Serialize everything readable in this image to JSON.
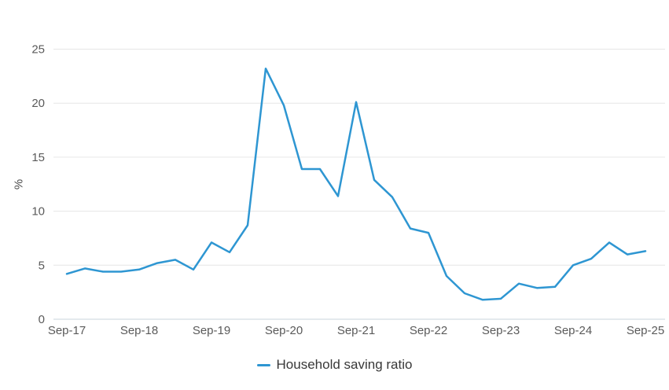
{
  "chart": {
    "y_axis_title": "%",
    "y_axis": {
      "tick_labels": [
        "0",
        "5",
        "10",
        "15",
        "20",
        "25"
      ]
    },
    "x_axis": {
      "tick_labels": [
        "Sep-17",
        "Sep-18",
        "Sep-19",
        "Sep-20",
        "Sep-21",
        "Sep-22",
        "Sep-23",
        "Sep-24",
        "Sep-25"
      ]
    },
    "legend": {
      "label": "Household saving ratio"
    },
    "colors": {
      "line": "#2e96d2",
      "grid": "#e6e6e6",
      "axis_line": "#c8d6dd",
      "tick_text": "#5a5a5a",
      "legend_text": "#383838"
    }
  },
  "chart_data": {
    "type": "line",
    "title": "",
    "xlabel": "",
    "ylabel": "%",
    "ylim": [
      0,
      25
    ],
    "grid": true,
    "legend_position": "bottom",
    "x": [
      "Sep-17",
      "Dec-17",
      "Mar-18",
      "Jun-18",
      "Sep-18",
      "Dec-18",
      "Mar-19",
      "Jun-19",
      "Sep-19",
      "Dec-19",
      "Mar-20",
      "Jun-20",
      "Sep-20",
      "Dec-20",
      "Mar-21",
      "Jun-21",
      "Sep-21",
      "Dec-21",
      "Mar-22",
      "Jun-22",
      "Sep-22",
      "Dec-22",
      "Mar-23",
      "Jun-23",
      "Sep-23",
      "Dec-23",
      "Mar-24",
      "Jun-24",
      "Sep-24",
      "Dec-24",
      "Mar-25",
      "Jun-25",
      "Sep-25"
    ],
    "series": [
      {
        "name": "Household saving ratio",
        "values": [
          4.2,
          4.7,
          4.4,
          4.4,
          4.6,
          5.2,
          5.5,
          4.6,
          7.1,
          6.2,
          8.7,
          23.2,
          19.8,
          13.9,
          13.9,
          11.4,
          20.1,
          12.9,
          11.3,
          8.4,
          8.0,
          4.0,
          2.4,
          1.8,
          1.9,
          3.3,
          2.9,
          3.0,
          5.0,
          5.6,
          7.1,
          6.0,
          6.3
        ]
      }
    ]
  }
}
